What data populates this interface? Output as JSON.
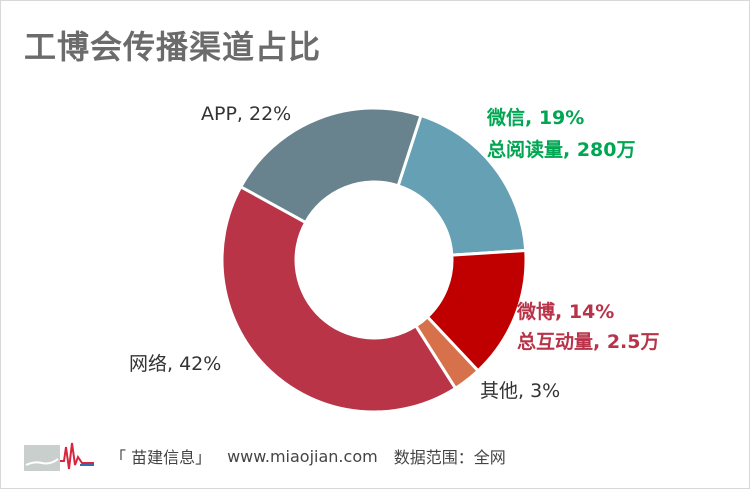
{
  "title": "工博会传播渠道占比",
  "chart_data": {
    "type": "pie",
    "title": "工博会传播渠道占比",
    "slices": [
      {
        "name": "微信",
        "value": 19,
        "label": "微信, 19%",
        "note": "总阅读量, 280万",
        "color": "#65a0b5",
        "label_color": "#00a651"
      },
      {
        "name": "微博",
        "value": 14,
        "label": "微博, 14%",
        "note": "总互动量, 2.5万",
        "color": "#c00000",
        "label_color": "#b83248"
      },
      {
        "name": "其他",
        "value": 3,
        "label": "其他, 3%",
        "note": "",
        "color": "#d6714b",
        "label_color": "#333333"
      },
      {
        "name": "网络",
        "value": 42,
        "label": "网络, 42%",
        "note": "",
        "color": "#b83446",
        "label_color": "#333333"
      },
      {
        "name": "APP",
        "value": 22,
        "label": "APP, 22%",
        "note": "",
        "color": "#68838d",
        "label_color": "#333333"
      }
    ]
  },
  "footer": {
    "source": "「 苗建信息」",
    "website": "www.miaojian.com",
    "scope": "数据范围：全网"
  }
}
